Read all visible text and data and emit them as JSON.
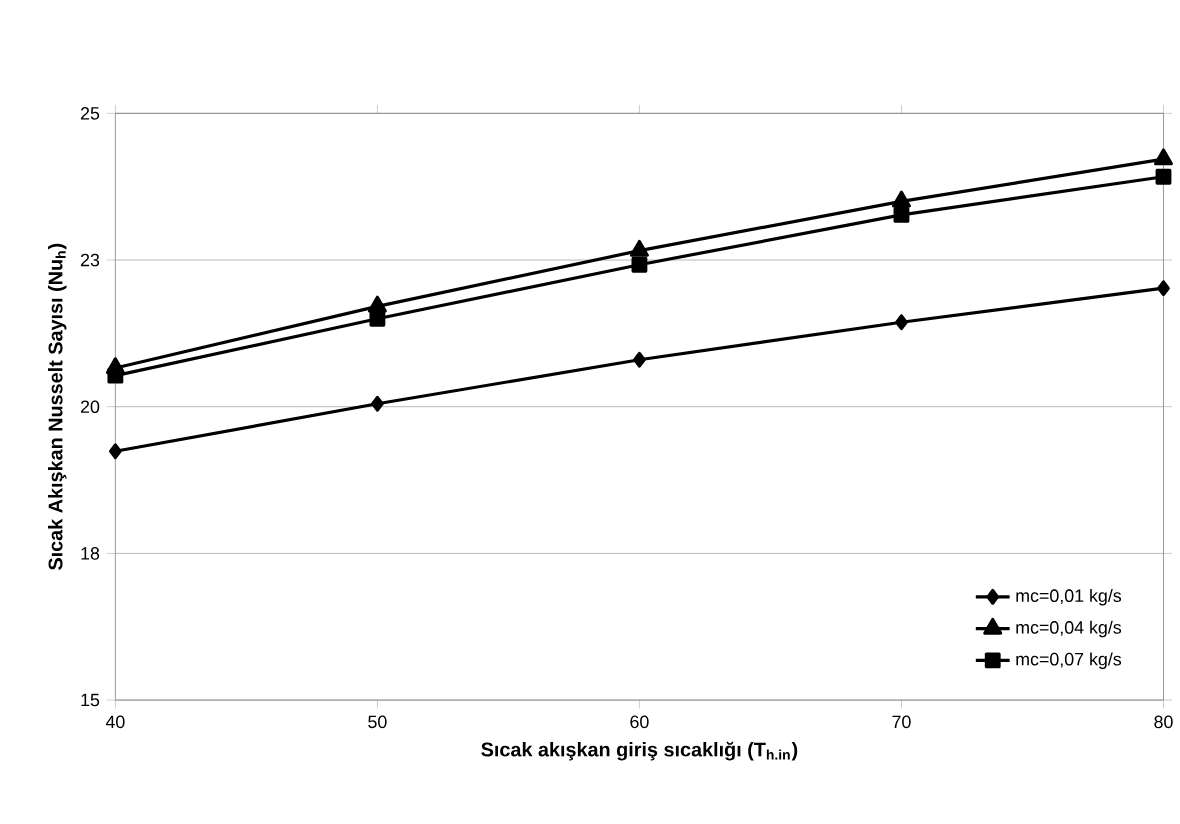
{
  "chart_data": {
    "type": "line",
    "xlabel": "Sıcak akışkan giriş sıcaklığı (T$_{h.in}$)",
    "ylabel": "Sıcak Akışkan Nusselt Sayısı (Nu$_{h}$)",
    "x": [
      40,
      50,
      60,
      70,
      80
    ],
    "xlim": [
      40,
      80
    ],
    "xticks": [
      40,
      50,
      60,
      70,
      80
    ],
    "ylim": [
      15,
      25
    ],
    "yticks": [
      15,
      {
        "value": 17.5,
        "label": "18"
      },
      20,
      {
        "value": 22.5,
        "label": "23"
      },
      25
    ],
    "grid": "y",
    "legend": "bottom right",
    "line_style": "solid",
    "series": [
      {
        "name": "mc=0,01 kg/s",
        "color": "#000000",
        "marker": "diamond",
        "values": [
          19.24,
          20.05,
          20.8,
          21.44,
          22.02
        ]
      },
      {
        "name": "mc=0,04 kg/s",
        "color": "#000000",
        "marker": "triangle",
        "values": [
          20.66,
          21.71,
          22.66,
          23.5,
          24.22
        ]
      },
      {
        "name": "mc=0,07 kg/s",
        "color": "#000000",
        "marker": "square",
        "values": [
          20.53,
          21.5,
          22.42,
          23.27,
          23.92
        ]
      }
    ]
  }
}
